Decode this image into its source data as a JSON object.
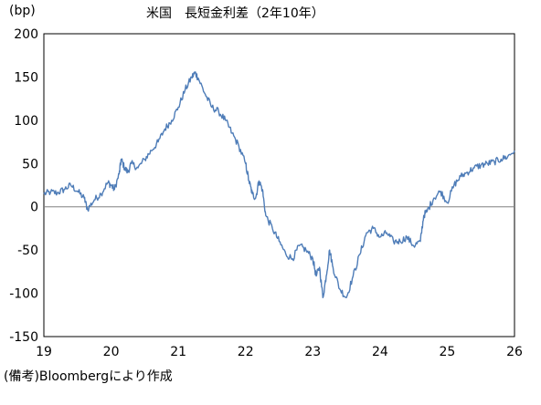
{
  "chart_data": {
    "type": "line",
    "unit_label": "(bp)",
    "title": "米国　長短金利差（2年10年）",
    "source": "(備考)Bloombergにより作成",
    "xlabel": "",
    "ylabel": "",
    "xlim": [
      19,
      26
    ],
    "ylim": [
      -150,
      200
    ],
    "x_ticks": [
      "19",
      "20",
      "21",
      "22",
      "23",
      "24",
      "25",
      "26"
    ],
    "y_ticks": [
      "200",
      "150",
      "100",
      "50",
      "0",
      "-50",
      "-100",
      "-150"
    ],
    "grid": false,
    "legend": "none",
    "line_color": "#4F7DB8",
    "zero_line_color": "#808080",
    "series": [
      {
        "x": [
          19.0,
          19.1,
          19.2,
          19.3,
          19.4,
          19.5,
          19.6,
          19.65,
          19.75,
          19.85,
          19.95,
          20.0,
          20.05,
          20.12,
          20.15,
          20.2,
          20.25,
          20.3,
          20.4,
          20.5,
          20.6,
          20.7,
          20.8,
          20.9,
          21.0,
          21.1,
          21.2,
          21.25,
          21.3,
          21.4,
          21.5,
          21.6,
          21.7,
          21.8,
          21.9,
          22.0,
          22.05,
          22.1,
          22.15,
          22.2,
          22.25,
          22.3,
          22.4,
          22.5,
          22.6,
          22.7,
          22.8,
          22.9,
          23.0,
          23.05,
          23.1,
          23.15,
          23.2,
          23.25,
          23.3,
          23.4,
          23.5,
          23.6,
          23.7,
          23.8,
          23.9,
          24.0,
          24.1,
          24.2,
          24.3,
          24.4,
          24.5,
          24.6,
          24.65,
          24.7,
          24.8,
          24.9,
          25.0,
          25.1,
          25.2,
          25.3,
          25.4,
          25.5,
          25.6,
          25.7,
          25.8,
          25.9,
          26.0
        ],
        "values": [
          15,
          17,
          16,
          20,
          25,
          18,
          10,
          -3,
          8,
          15,
          28,
          25,
          20,
          38,
          55,
          45,
          40,
          50,
          45,
          55,
          65,
          75,
          90,
          100,
          115,
          135,
          150,
          155,
          148,
          130,
          115,
          110,
          100,
          85,
          70,
          50,
          30,
          15,
          10,
          30,
          20,
          -10,
          -25,
          -40,
          -55,
          -60,
          -45,
          -50,
          -60,
          -80,
          -70,
          -105,
          -80,
          -50,
          -70,
          -95,
          -105,
          -80,
          -55,
          -30,
          -25,
          -35,
          -30,
          -40,
          -40,
          -35,
          -45,
          -40,
          -10,
          -5,
          10,
          18,
          5,
          25,
          35,
          40,
          45,
          48,
          50,
          52,
          55,
          58,
          65
        ]
      }
    ]
  }
}
